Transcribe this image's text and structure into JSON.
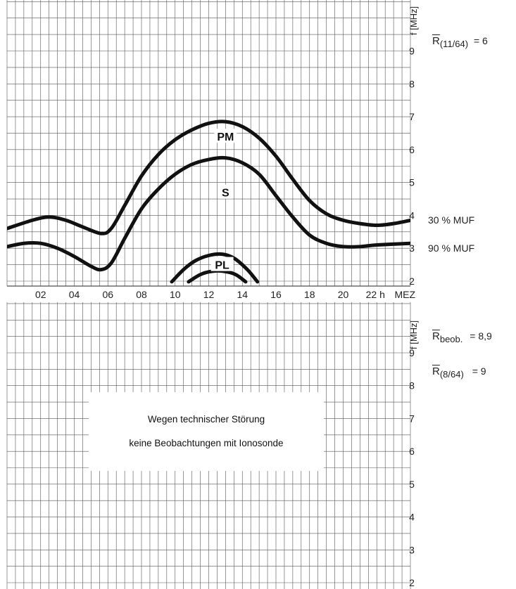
{
  "chart_data": [
    {
      "type": "line",
      "x_tick_labels": [
        "02",
        "04",
        "06",
        "08",
        "10",
        "12",
        "14",
        "16",
        "18",
        "20",
        "22 h"
      ],
      "x_unit_label": "MEZ",
      "y_axis_label": "f [MHz]",
      "y_tick_labels": [
        "2",
        "3",
        "4",
        "5",
        "6",
        "7",
        "8",
        "9"
      ],
      "xlim": [
        0,
        24
      ],
      "ylim": [
        2,
        10
      ],
      "grid": true,
      "series": [
        {
          "name": "PM",
          "points": [
            [
              0,
              3.6
            ],
            [
              1.5,
              3.85
            ],
            [
              2.5,
              3.95
            ],
            [
              3.5,
              3.85
            ],
            [
              4.5,
              3.65
            ],
            [
              5.6,
              3.45
            ],
            [
              6.2,
              3.6
            ],
            [
              7,
              4.3
            ],
            [
              8,
              5.2
            ],
            [
              9,
              5.85
            ],
            [
              10,
              6.3
            ],
            [
              11,
              6.6
            ],
            [
              12,
              6.8
            ],
            [
              13,
              6.85
            ],
            [
              14,
              6.7
            ],
            [
              15,
              6.35
            ],
            [
              16,
              5.8
            ],
            [
              17,
              5.1
            ],
            [
              18,
              4.45
            ],
            [
              19,
              4.05
            ],
            [
              20,
              3.85
            ],
            [
              21,
              3.75
            ],
            [
              22,
              3.7
            ],
            [
              23,
              3.75
            ],
            [
              24,
              3.85
            ]
          ]
        },
        {
          "name": "S",
          "points": [
            [
              0,
              3.05
            ],
            [
              1,
              3.15
            ],
            [
              2,
              3.15
            ],
            [
              3,
              3.0
            ],
            [
              4,
              2.75
            ],
            [
              5,
              2.45
            ],
            [
              5.6,
              2.35
            ],
            [
              6.2,
              2.55
            ],
            [
              7,
              3.3
            ],
            [
              8,
              4.2
            ],
            [
              9,
              4.8
            ],
            [
              10,
              5.25
            ],
            [
              11,
              5.55
            ],
            [
              12,
              5.7
            ],
            [
              13,
              5.75
            ],
            [
              14,
              5.6
            ],
            [
              15,
              5.25
            ],
            [
              16,
              4.6
            ],
            [
              17,
              3.95
            ],
            [
              18,
              3.4
            ],
            [
              19,
              3.15
            ],
            [
              20,
              3.05
            ],
            [
              21,
              3.05
            ],
            [
              22,
              3.1
            ],
            [
              24,
              3.15
            ]
          ]
        },
        {
          "name": "PL",
          "points": [
            [
              9.8,
              1.98
            ],
            [
              10.5,
              2.35
            ],
            [
              11.2,
              2.62
            ],
            [
              12,
              2.78
            ],
            [
              12.8,
              2.82
            ],
            [
              13.5,
              2.7
            ],
            [
              14.3,
              2.35
            ],
            [
              14.9,
              1.98
            ]
          ]
        },
        {
          "name": "",
          "points": [
            [
              10.8,
              1.98
            ],
            [
              11.5,
              2.2
            ],
            [
              12.2,
              2.3
            ],
            [
              12.9,
              2.3
            ],
            [
              13.6,
              2.2
            ],
            [
              14.2,
              1.98
            ]
          ]
        }
      ],
      "curve_labels": [
        {
          "text": "PM",
          "x": 13,
          "y": 6.4
        },
        {
          "text": "S",
          "x": 13,
          "y": 4.7
        },
        {
          "text": "PL",
          "x": 12.8,
          "y": 2.5
        }
      ],
      "annotations": {
        "r_symbol": "R",
        "r_subscript": "(11/64)",
        "r_value": "= 6",
        "muf30": "30 % MUF",
        "muf90": "90 % MUF"
      }
    },
    {
      "type": "line",
      "y_axis_label": "f [MHz]",
      "y_tick_labels": [
        "2",
        "3",
        "4",
        "5",
        "6",
        "7",
        "8",
        "9"
      ],
      "xlim": [
        0,
        24
      ],
      "ylim": [
        2,
        10
      ],
      "grid": true,
      "series": [],
      "annotations": {
        "r1_symbol": "R",
        "r1_subscript": "beob.",
        "r1_value": "= 8,9",
        "r2_symbol": "R",
        "r2_subscript": "(8/64)",
        "r2_value": "= 9"
      },
      "notice_line1": "Wegen technischer Störung",
      "notice_line2": "keine Beobachtungen mit Ionosonde"
    }
  ]
}
